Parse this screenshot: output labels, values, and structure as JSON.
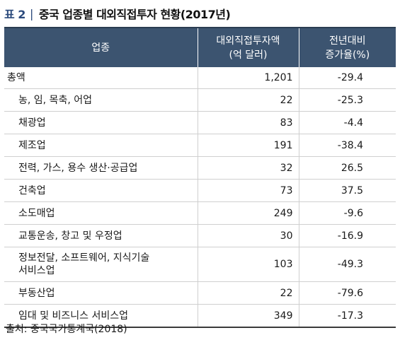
{
  "title": {
    "label": "표 2",
    "separator": "|",
    "text": "중국 업종별 대외직접투자 현황(2017년)"
  },
  "table": {
    "headers": {
      "industry": "업종",
      "amount_line1": "대외직접투자액",
      "amount_line2": "(억 달러)",
      "change_line1": "전년대비",
      "change_line2": "증가율(%)"
    },
    "rows": [
      {
        "industry": "총액",
        "amount": "1,201",
        "change": "-29.4"
      },
      {
        "industry": "농, 임, 목축, 어업",
        "amount": "22",
        "change": "-25.3"
      },
      {
        "industry": "채광업",
        "amount": "83",
        "change": "-4.4"
      },
      {
        "industry": "제조업",
        "amount": "191",
        "change": "-38.4"
      },
      {
        "industry": "전력, 가스, 용수 생산·공급업",
        "amount": "32",
        "change": "26.5"
      },
      {
        "industry": "건축업",
        "amount": "73",
        "change": "37.5"
      },
      {
        "industry": "소도매업",
        "amount": "249",
        "change": "-9.6"
      },
      {
        "industry": "교통운송, 창고 및 우정업",
        "amount": "30",
        "change": "-16.9"
      },
      {
        "industry_line1": "정보전달, 소프트웨어, 지식기술",
        "industry_line2": "서비스업",
        "amount": "103",
        "change": "-49.3"
      },
      {
        "industry": "부동산업",
        "amount": "22",
        "change": "-79.6"
      },
      {
        "industry": "임대 및 비즈니스 서비스업",
        "amount": "349",
        "change": "-17.3"
      }
    ]
  },
  "source": "출처: 중국국가통계국(2018)"
}
